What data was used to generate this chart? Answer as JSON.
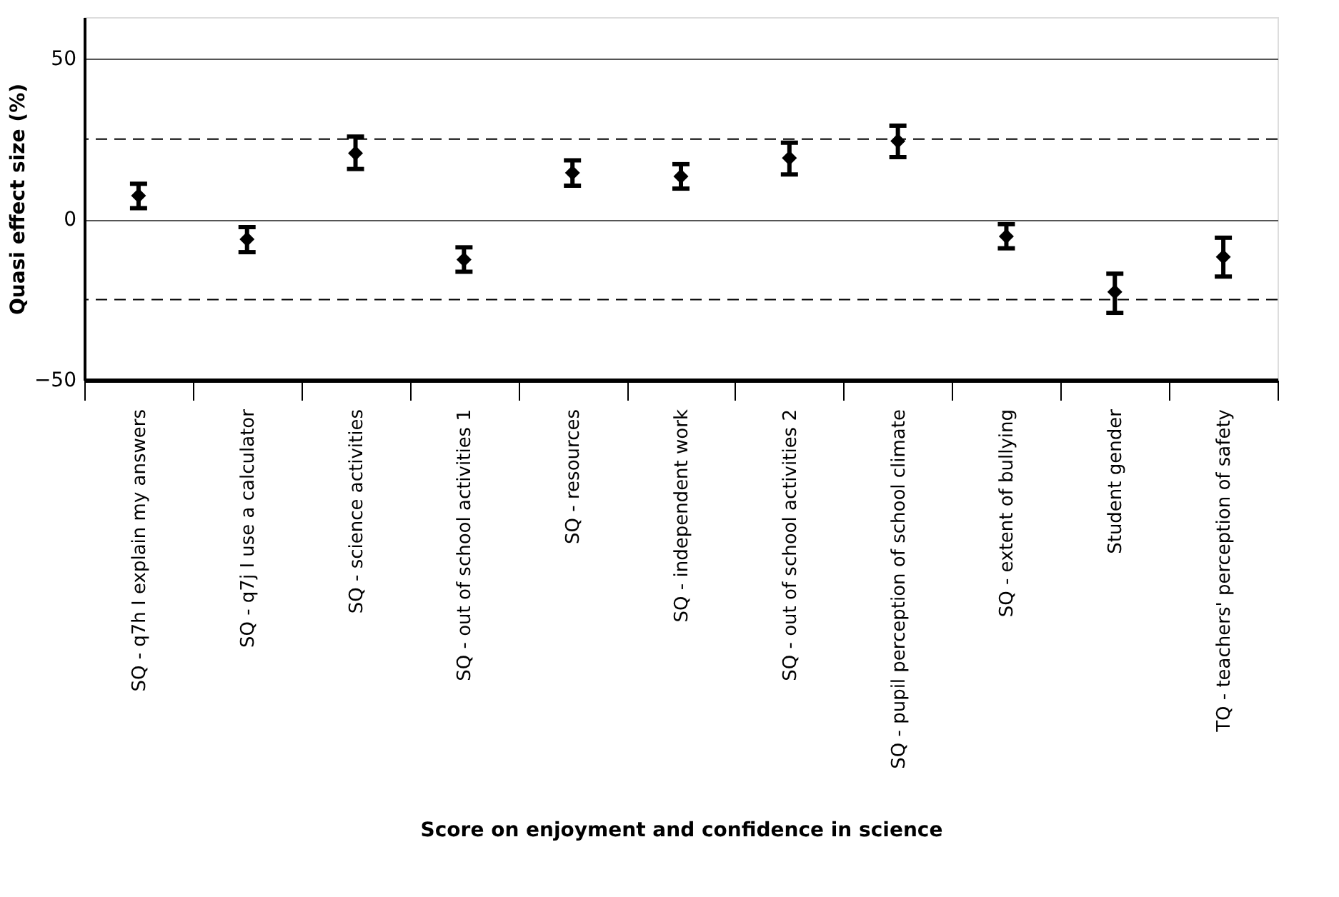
{
  "chart_data": {
    "type": "scatter",
    "xlabel": "Score on enjoyment and confidence in science",
    "ylabel": "Quasi effect size (%)",
    "categories": [
      "SQ - q7h I explain my answers",
      "SQ - q7j I use a calculator",
      "SQ - science activities",
      "SQ - out of school activities 1",
      "SQ - resources",
      "SQ - independent work",
      "SQ - out of school activities 2",
      "SQ - pupil perception of school climate",
      "SQ - extent of bullying",
      "Student gender",
      "TQ - teachers' perception of safety"
    ],
    "values": [
      7.4,
      -6.2,
      20.6,
      -12.5,
      14.5,
      13.4,
      19.1,
      24.4,
      -5.3,
      -22.6,
      -11.7
    ],
    "errors": [
      [
        3.5,
        11.1
      ],
      [
        -10.2,
        -2.4
      ],
      [
        15.7,
        25.8
      ],
      [
        -16.3,
        -8.7
      ],
      [
        10.5,
        18.4
      ],
      [
        9.6,
        17.2
      ],
      [
        14.0,
        23.9
      ],
      [
        19.4,
        29.2
      ],
      [
        -9.0,
        -1.5
      ],
      [
        -29.1,
        -16.9
      ],
      [
        -17.8,
        -5.7
      ]
    ],
    "color": "#000000",
    "marker": "diamond",
    "ylim": [
      -50,
      63
    ],
    "yticks": [
      -50,
      0,
      50
    ],
    "grid": "y",
    "ref_lines": [
      {
        "axis": "y",
        "value": 25,
        "line_style": "dashed"
      },
      {
        "axis": "y",
        "value": -25,
        "line_style": "dashed"
      }
    ]
  }
}
